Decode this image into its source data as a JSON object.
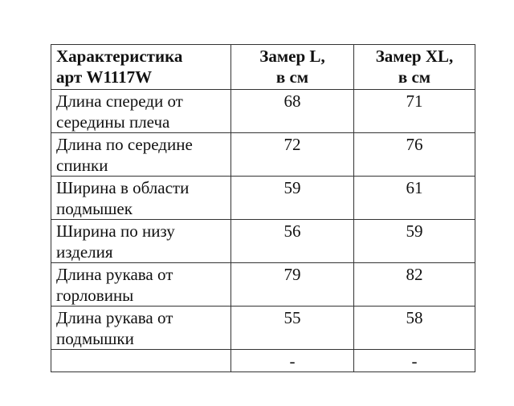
{
  "table": {
    "headers": [
      "Характеристика\nарт W1117W",
      "Замер L,\nв см",
      "Замер XL,\nв см"
    ],
    "header_lines": [
      [
        "Характеристика",
        "арт W1117W"
      ],
      [
        "Замер L,",
        "в см"
      ],
      [
        "Замер XL,",
        "в см"
      ]
    ],
    "rows": [
      {
        "name": "Длина спереди от середины плеча",
        "l": "68",
        "xl": "71"
      },
      {
        "name": "Длина по середине спинки",
        "l": "72",
        "xl": "76"
      },
      {
        "name": "Ширина в области подмышек",
        "l": "59",
        "xl": "61"
      },
      {
        "name": "Ширина по низу изделия",
        "l": "56",
        "xl": "59"
      },
      {
        "name": "Длина рукава от горловины",
        "l": "79",
        "xl": "82"
      },
      {
        "name": "Длина рукава от подмышки",
        "l": "55",
        "xl": "58"
      },
      {
        "name": "",
        "l": "-",
        "xl": "-"
      }
    ]
  }
}
